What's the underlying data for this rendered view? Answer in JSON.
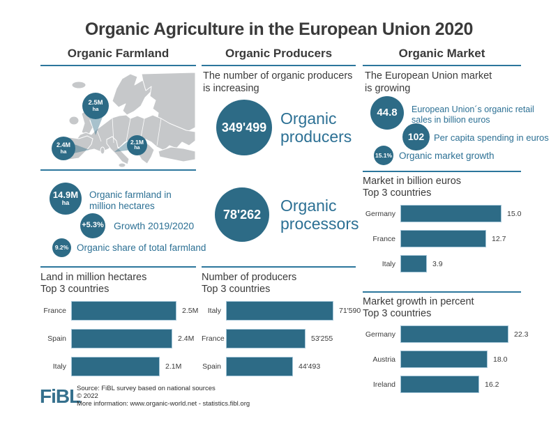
{
  "title": "Organic Agriculture in the European Union 2020",
  "colors": {
    "teal": "#2d6b86",
    "teal_text": "#2c7094",
    "divider": "#2b769c",
    "dark_text": "#3a3a3a",
    "map_gray": "#c6c8ca",
    "logo_blue": "#35708d"
  },
  "columns": {
    "farmland": {
      "header": "Organic Farmland",
      "map": {
        "name": "europe-map",
        "bubbles": [
          {
            "value": "2.5M",
            "unit": "ha",
            "country": "France"
          },
          {
            "value": "2.4M",
            "unit": "ha",
            "country": "Spain"
          },
          {
            "value": "2.1M",
            "unit": "ha",
            "country": "Italy"
          }
        ]
      },
      "facts": [
        {
          "value": "14.9M",
          "unit": "ha",
          "label": "Organic farmland in million hectares"
        },
        {
          "value": "+5.3%",
          "unit": "",
          "label": "Growth 2019/2020"
        },
        {
          "value": "9.2%",
          "unit": "",
          "label": "Organic share of total farmland"
        }
      ]
    },
    "producers": {
      "header": "Organic Producers",
      "intro_line1": "The number of organic producers",
      "intro_line2": "is increasing",
      "stats": [
        {
          "value": "349'499",
          "label": "Organic producers"
        },
        {
          "value": "78'262",
          "label": "Organic processors"
        }
      ]
    },
    "market": {
      "header": "Organic Market",
      "intro_line1": "The European Union market",
      "intro_line2": "is growing",
      "facts": [
        {
          "value": "44.8",
          "label": "European Union´s organic retail sales in billion euros"
        },
        {
          "value": "102",
          "label": "Per capita spending in euros"
        },
        {
          "value": "15.1%",
          "label": "Organic market growth"
        }
      ]
    }
  },
  "chart_data": [
    {
      "type": "bar",
      "orientation": "horizontal",
      "title": "Land in million hectares",
      "subtitle": "Top 3 countries",
      "categories": [
        "France",
        "Spain",
        "Italy"
      ],
      "values": [
        2.5,
        2.4,
        2.1
      ],
      "value_labels": [
        "2.5M",
        "2.4M",
        "2.1M"
      ],
      "xlabel": "",
      "ylabel": "",
      "grid": false,
      "legend": false
    },
    {
      "type": "bar",
      "orientation": "horizontal",
      "title": "Number of producers",
      "subtitle": "Top 3 countries",
      "categories": [
        "Italy",
        "France",
        "Spain"
      ],
      "values": [
        71590,
        53255,
        44493
      ],
      "value_labels": [
        "71'590",
        "53'255",
        "44'493"
      ],
      "xlabel": "",
      "ylabel": "",
      "grid": false,
      "legend": false
    },
    {
      "type": "bar",
      "orientation": "horizontal",
      "title": "Market in billion euros",
      "subtitle": "Top 3 countries",
      "categories": [
        "Germany",
        "France",
        "Italy"
      ],
      "values": [
        15.0,
        12.7,
        3.9
      ],
      "value_labels": [
        "15.0",
        "12.7",
        "3.9"
      ],
      "xlabel": "",
      "ylabel": "",
      "grid": false,
      "legend": false
    },
    {
      "type": "bar",
      "orientation": "horizontal",
      "title": "Market growth in percent",
      "subtitle": "Top 3 countries",
      "categories": [
        "Germany",
        "Austria",
        "Ireland"
      ],
      "values": [
        22.3,
        18.0,
        16.2
      ],
      "value_labels": [
        "22.3",
        "18.0",
        "16.2"
      ],
      "xlabel": "",
      "ylabel": "",
      "grid": false,
      "legend": false
    }
  ],
  "footer": {
    "logo": "FiBL",
    "source_line1": "Source: FiBL survey based on national sources",
    "source_line2": "© 2022",
    "source_line3": "More information: www.organic-world.net - statistics.fibl.org"
  }
}
